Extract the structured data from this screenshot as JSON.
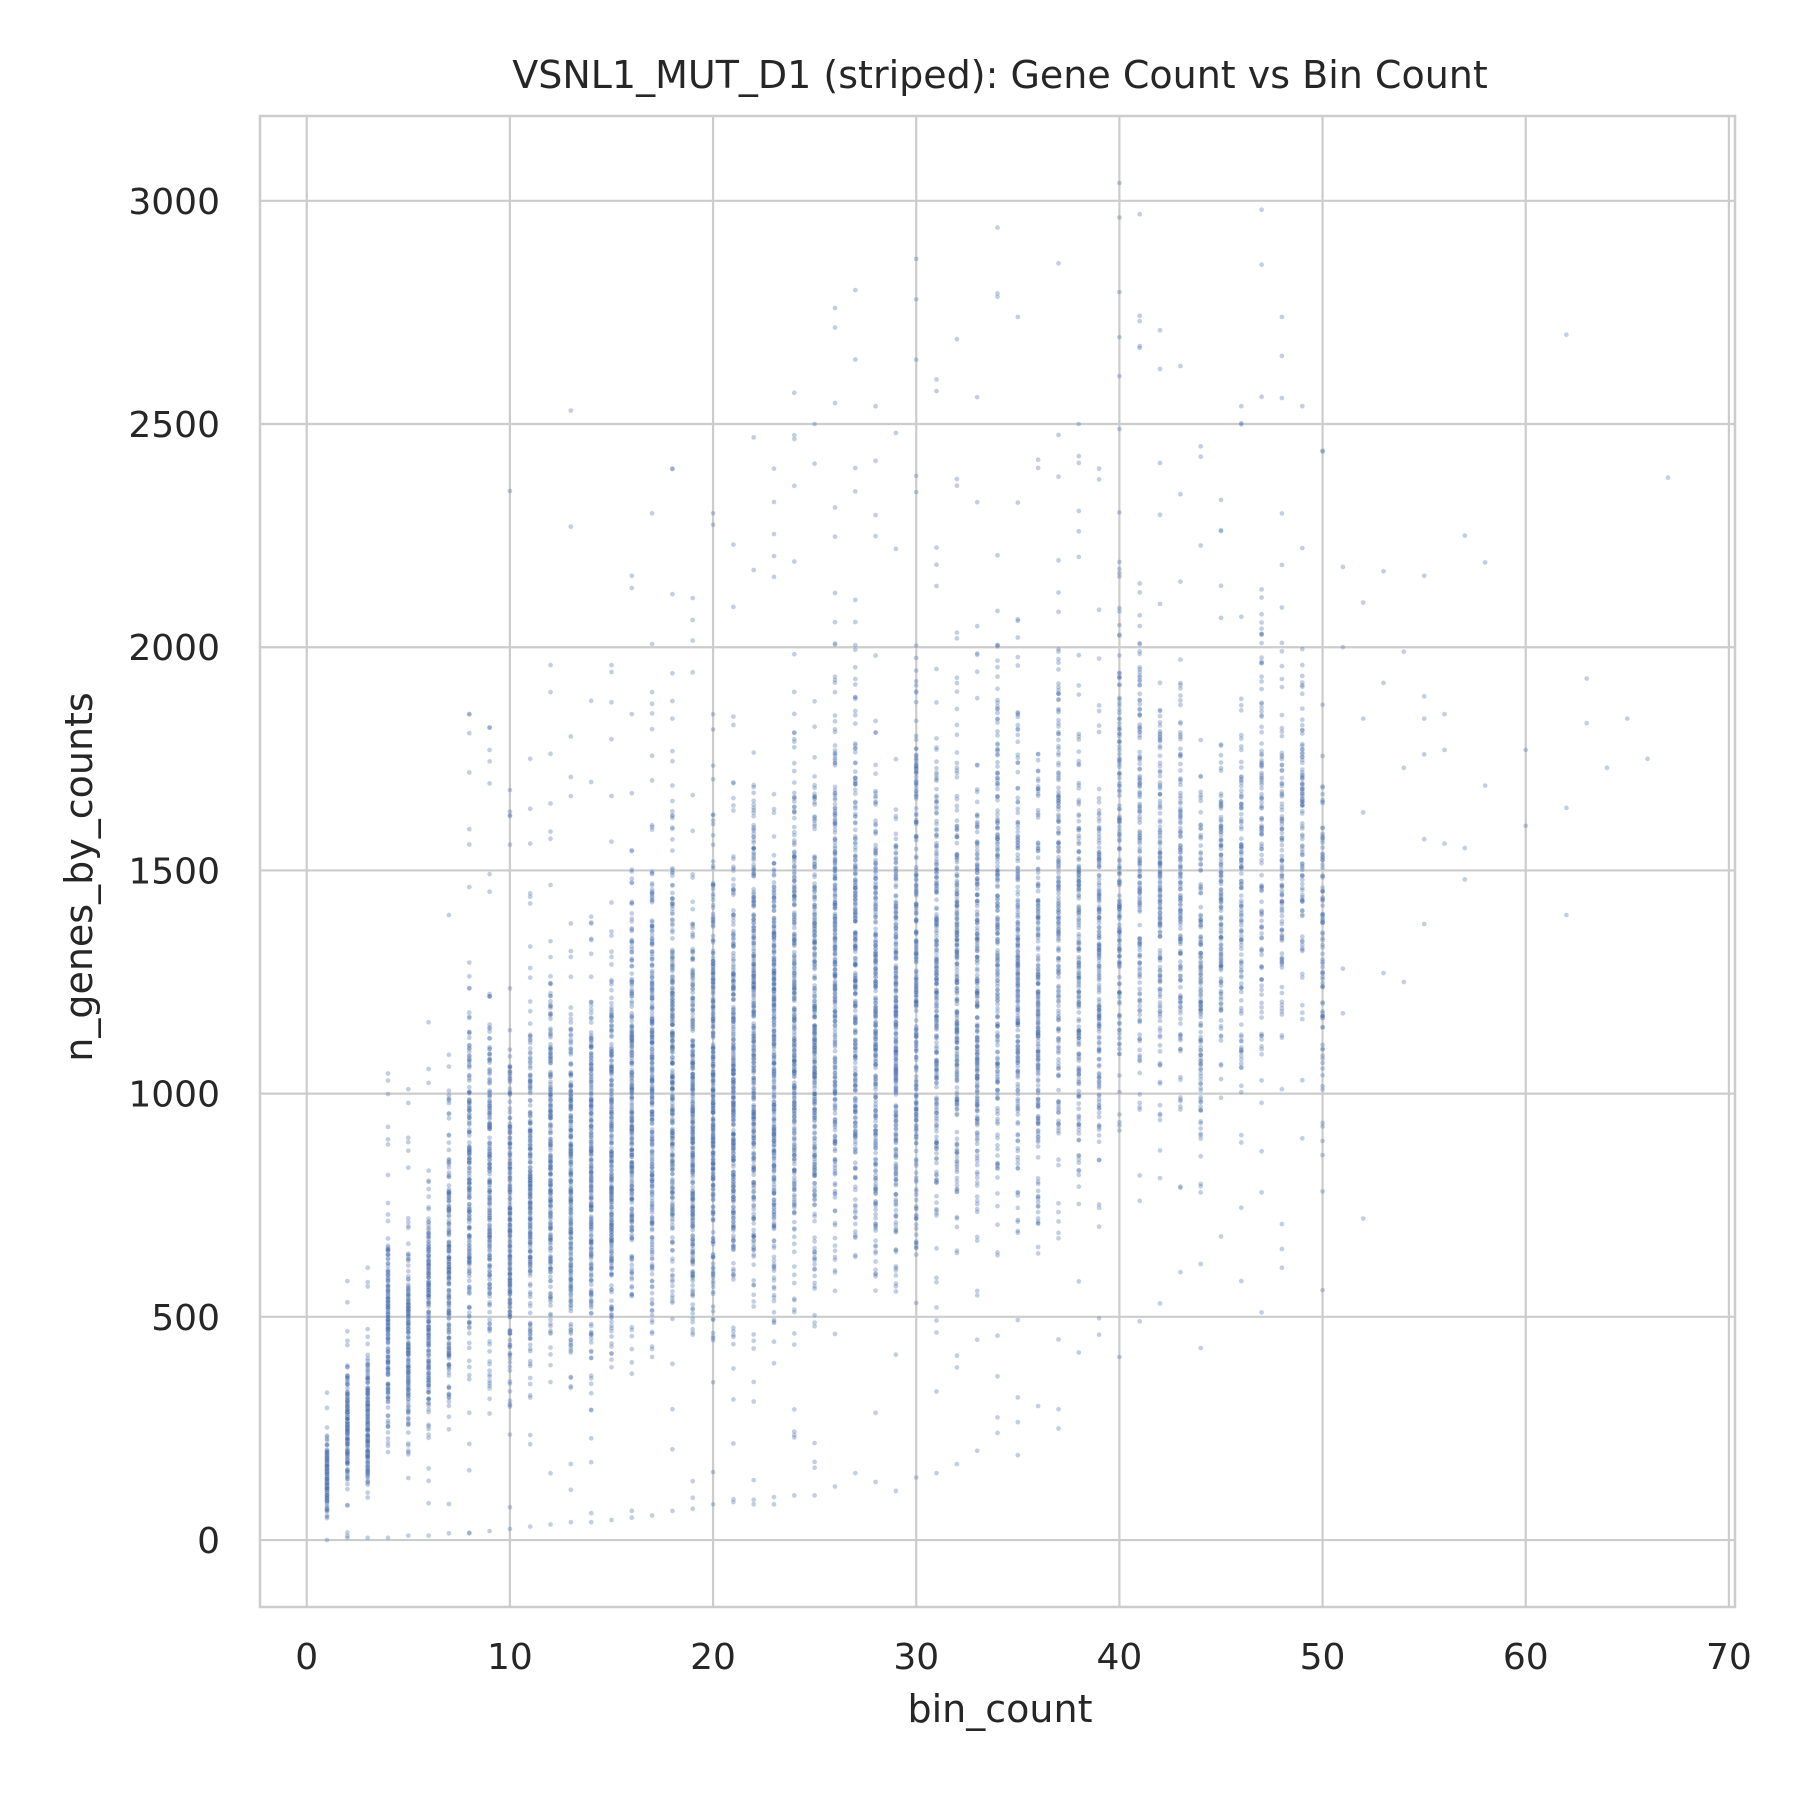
{
  "chart_data": {
    "type": "scatter",
    "title": "VSNL1_MUT_D1 (striped): Gene Count vs Bin Count",
    "xlabel": "bin_count",
    "ylabel": "n_genes_by_counts",
    "xlim": [
      -2.3,
      70.3
    ],
    "ylim": [
      -150,
      3190
    ],
    "xticks": [
      0,
      10,
      20,
      30,
      40,
      50,
      60,
      70
    ],
    "yticks": [
      0,
      500,
      1000,
      1500,
      2000,
      2500,
      3000
    ],
    "grid": true,
    "legend": "none",
    "marker_color": "#4c72b0",
    "marker_alpha": 0.35,
    "column_ranges": [
      [
        1,
        0,
        330
      ],
      [
        2,
        5,
        580
      ],
      [
        3,
        5,
        610
      ],
      [
        4,
        5,
        1045
      ],
      [
        5,
        10,
        1010
      ],
      [
        6,
        10,
        1160
      ],
      [
        7,
        15,
        1400
      ],
      [
        8,
        15,
        1850
      ],
      [
        9,
        20,
        1820
      ],
      [
        10,
        25,
        1680
      ],
      [
        11,
        30,
        1750
      ],
      [
        12,
        35,
        1960
      ],
      [
        13,
        40,
        1800
      ],
      [
        14,
        40,
        1880
      ],
      [
        15,
        45,
        1960
      ],
      [
        16,
        50,
        2160
      ],
      [
        17,
        55,
        2300
      ],
      [
        18,
        65,
        2400
      ],
      [
        19,
        70,
        2110
      ],
      [
        20,
        80,
        2300
      ],
      [
        21,
        85,
        2230
      ],
      [
        22,
        80,
        2470
      ],
      [
        23,
        80,
        2400
      ],
      [
        24,
        100,
        2570
      ],
      [
        25,
        100,
        2500
      ],
      [
        26,
        120,
        2760
      ],
      [
        27,
        150,
        2800
      ],
      [
        28,
        130,
        2540
      ],
      [
        29,
        110,
        2480
      ],
      [
        30,
        140,
        2870
      ],
      [
        31,
        150,
        2600
      ],
      [
        32,
        170,
        2690
      ],
      [
        33,
        200,
        2560
      ],
      [
        34,
        240,
        2940
      ],
      [
        35,
        190,
        2740
      ],
      [
        36,
        300,
        2420
      ],
      [
        37,
        250,
        2860
      ],
      [
        38,
        420,
        2500
      ],
      [
        39,
        460,
        2400
      ],
      [
        40,
        410,
        3040
      ],
      [
        41,
        490,
        2970
      ],
      [
        42,
        530,
        2710
      ],
      [
        43,
        600,
        2630
      ],
      [
        44,
        430,
        2450
      ],
      [
        45,
        680,
        2330
      ],
      [
        46,
        580,
        2540
      ],
      [
        47,
        510,
        2980
      ],
      [
        48,
        610,
        2740
      ],
      [
        49,
        900,
        2540
      ],
      [
        50,
        560,
        2440
      ]
    ],
    "outliers": [
      [
        10,
        2350
      ],
      [
        13,
        2530
      ],
      [
        13,
        2270
      ],
      [
        8,
        1850
      ],
      [
        9,
        1820
      ],
      [
        51,
        2180
      ],
      [
        51,
        2000
      ],
      [
        51,
        1280
      ],
      [
        51,
        1180
      ],
      [
        52,
        2100
      ],
      [
        52,
        1840
      ],
      [
        52,
        1630
      ],
      [
        52,
        720
      ],
      [
        53,
        2170
      ],
      [
        53,
        1920
      ],
      [
        53,
        1270
      ],
      [
        54,
        1990
      ],
      [
        54,
        1730
      ],
      [
        54,
        1250
      ],
      [
        55,
        2160
      ],
      [
        55,
        1890
      ],
      [
        55,
        1840
      ],
      [
        55,
        1760
      ],
      [
        55,
        1570
      ],
      [
        55,
        1380
      ],
      [
        56,
        1850
      ],
      [
        56,
        1770
      ],
      [
        56,
        1560
      ],
      [
        57,
        2250
      ],
      [
        57,
        1550
      ],
      [
        57,
        1480
      ],
      [
        58,
        2190
      ],
      [
        58,
        1690
      ],
      [
        60,
        1770
      ],
      [
        60,
        1600
      ],
      [
        62,
        2700
      ],
      [
        62,
        1640
      ],
      [
        62,
        1400
      ],
      [
        63,
        1930
      ],
      [
        63,
        1830
      ],
      [
        64,
        1730
      ],
      [
        65,
        1840
      ],
      [
        66,
        1750
      ],
      [
        67,
        2380
      ]
    ]
  }
}
